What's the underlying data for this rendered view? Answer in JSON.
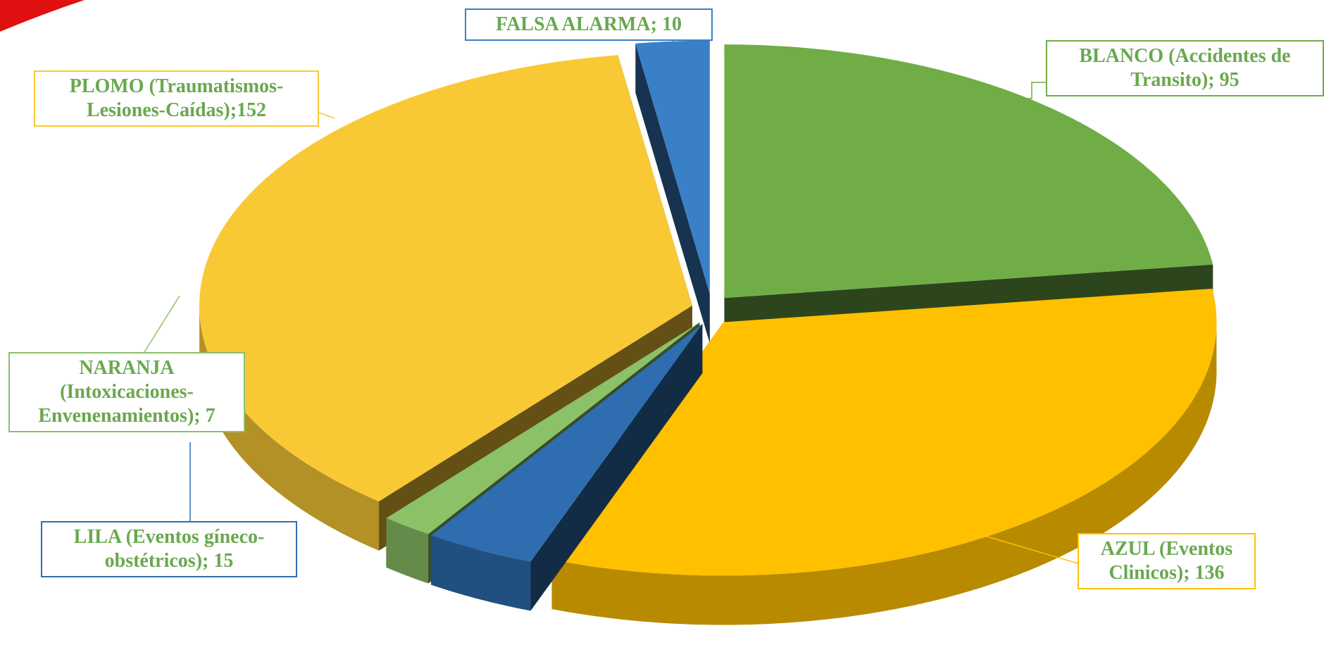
{
  "chart_data": {
    "type": "pie3d",
    "categories": [
      "BLANCO (Accidentes de Transito)",
      "AZUL (Eventos Clinicos)",
      "LILA (Eventos gíneco-obstétricos)",
      "NARANJA (Intoxicaciones-Envenenamientos)",
      "PLOMO (Traumatismos-Lesiones-Caídas)",
      "FALSA ALARMA"
    ],
    "values": [
      95,
      136,
      15,
      7,
      152,
      10
    ],
    "value_labels": [
      "; 95",
      "; 136",
      "; 15",
      "; 7",
      ";152",
      "; 10"
    ],
    "colors": [
      "#70ad47",
      "#ffc000",
      "#2e6eb0",
      "#8cc168",
      "#f9c935",
      "#3a80c6"
    ]
  }
}
